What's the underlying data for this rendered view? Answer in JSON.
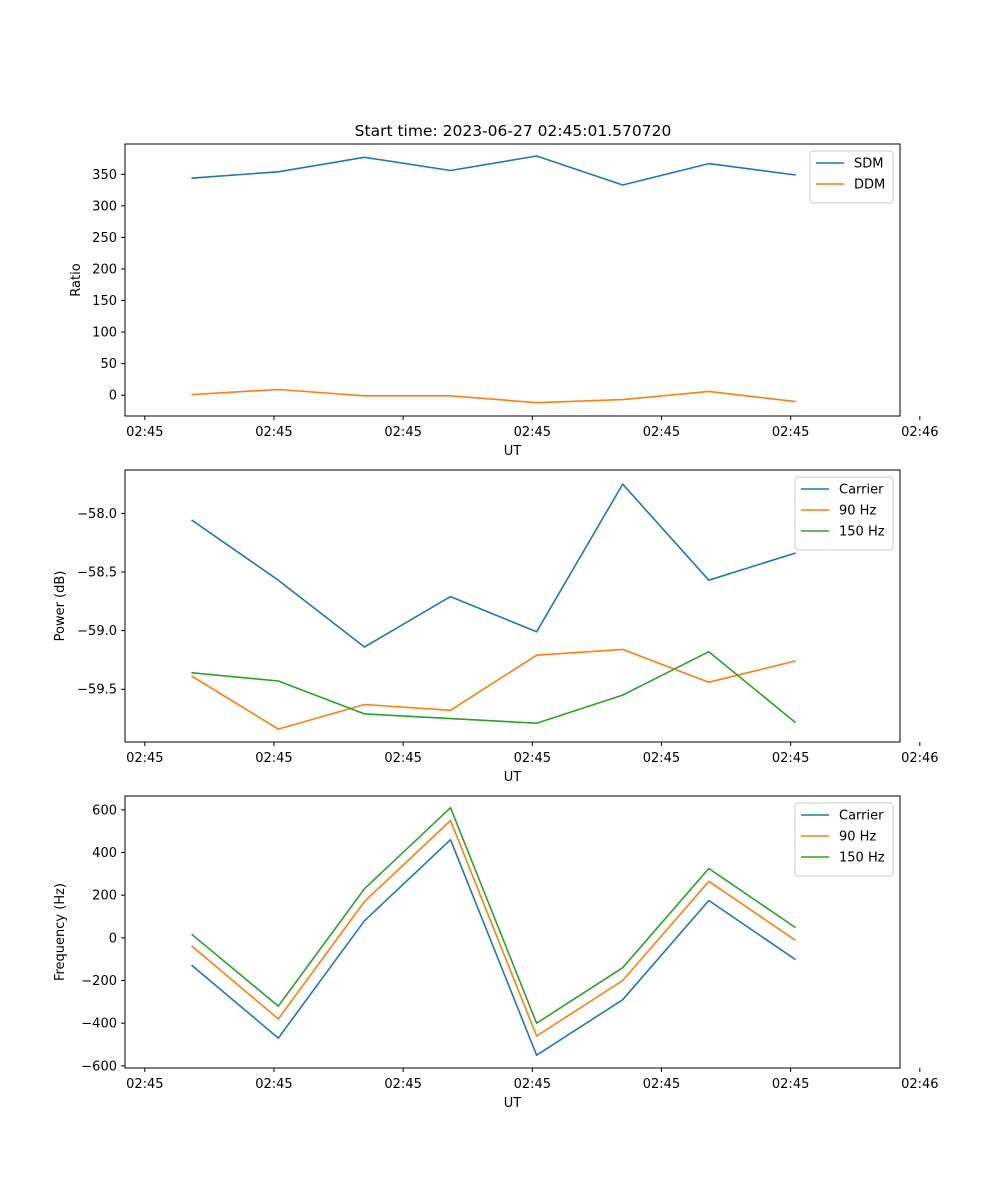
{
  "title": "Start time: 2023-06-27 02:45:01.570720",
  "colors": {
    "blue": "#1f77b4",
    "orange": "#ff7f0e",
    "green": "#2ca02c"
  },
  "chart_data": [
    {
      "type": "line",
      "xlabel": "UT",
      "ylabel": "Ratio",
      "title": "Start time: 2023-06-27 02:45:01.570720",
      "x": [
        1,
        2,
        3,
        4,
        5,
        6,
        7,
        8
      ],
      "xlim": [
        0.22,
        9.22
      ],
      "xticks": [
        0.45,
        1.95,
        3.45,
        4.95,
        6.45,
        7.95,
        9.45
      ],
      "xticklabels": [
        "02:45",
        "02:45",
        "02:45",
        "02:45",
        "02:45",
        "02:45",
        "02:46"
      ],
      "ylim": [
        -33,
        398
      ],
      "yticks": [
        0,
        50,
        100,
        150,
        200,
        250,
        300,
        350
      ],
      "yticklabels": [
        "0",
        "50",
        "100",
        "150",
        "200",
        "250",
        "300",
        "350"
      ],
      "legend": "top-right",
      "series": [
        {
          "name": "SDM",
          "color": "#1f77b4",
          "values": [
            344,
            354,
            377,
            356,
            379,
            333,
            367,
            349
          ]
        },
        {
          "name": "DDM",
          "color": "#ff7f0e",
          "values": [
            1,
            9,
            -1,
            -1,
            -12,
            -7,
            6,
            -10
          ]
        }
      ]
    },
    {
      "type": "line",
      "xlabel": "UT",
      "ylabel": "Power (dB)",
      "x": [
        1,
        2,
        3,
        4,
        5,
        6,
        7,
        8
      ],
      "xlim": [
        0.22,
        9.22
      ],
      "xticks": [
        0.45,
        1.95,
        3.45,
        4.95,
        6.45,
        7.95,
        9.45
      ],
      "xticklabels": [
        "02:45",
        "02:45",
        "02:45",
        "02:45",
        "02:45",
        "02:45",
        "02:46"
      ],
      "ylim": [
        -59.95,
        -57.63
      ],
      "yticks": [
        -59.5,
        -59.0,
        -58.5,
        -58.0
      ],
      "yticklabels": [
        "−59.5",
        "−59.0",
        "−58.5",
        "−58.0"
      ],
      "legend": "top-right",
      "series": [
        {
          "name": "Carrier",
          "color": "#1f77b4",
          "values": [
            -58.06,
            -58.57,
            -59.14,
            -58.71,
            -59.01,
            -57.75,
            -58.57,
            -58.34
          ]
        },
        {
          "name": "90 Hz",
          "color": "#ff7f0e",
          "values": [
            -59.39,
            -59.84,
            -59.63,
            -59.68,
            -59.21,
            -59.16,
            -59.44,
            -59.26
          ]
        },
        {
          "name": "150 Hz",
          "color": "#2ca02c",
          "values": [
            -59.36,
            -59.43,
            -59.71,
            -59.75,
            -59.79,
            -59.55,
            -59.18,
            -59.78
          ]
        }
      ]
    },
    {
      "type": "line",
      "xlabel": "UT",
      "ylabel": "Frequency (Hz)",
      "x": [
        1,
        2,
        3,
        4,
        5,
        6,
        7,
        8
      ],
      "xlim": [
        0.22,
        9.22
      ],
      "xticks": [
        0.45,
        1.95,
        3.45,
        4.95,
        6.45,
        7.95,
        9.45
      ],
      "xticklabels": [
        "02:45",
        "02:45",
        "02:45",
        "02:45",
        "02:45",
        "02:45",
        "02:46"
      ],
      "ylim": [
        -610,
        665
      ],
      "yticks": [
        -600,
        -400,
        -200,
        0,
        200,
        400,
        600
      ],
      "yticklabels": [
        "−600",
        "−400",
        "−200",
        "0",
        "200",
        "400",
        "600"
      ],
      "legend": "top-right",
      "series": [
        {
          "name": "Carrier",
          "color": "#1f77b4",
          "values": [
            -130,
            -470,
            80,
            460,
            -550,
            -290,
            175,
            -100
          ]
        },
        {
          "name": "90 Hz",
          "color": "#ff7f0e",
          "values": [
            -40,
            -380,
            170,
            550,
            -460,
            -200,
            265,
            -10
          ]
        },
        {
          "name": "150 Hz",
          "color": "#2ca02c",
          "values": [
            15,
            -320,
            230,
            610,
            -400,
            -140,
            325,
            50
          ]
        }
      ]
    }
  ]
}
